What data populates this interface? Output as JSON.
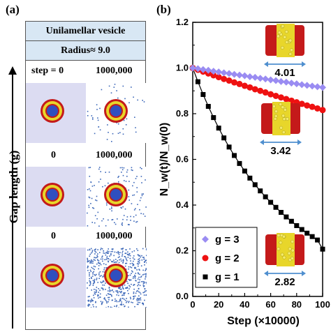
{
  "panel_a": {
    "label": "(a)",
    "header1": "Unilamellar vesicle",
    "header2": "Radius≈ 9.0",
    "rows": [
      {
        "left": "step = 0",
        "right": "1000,000"
      },
      {
        "left": "0",
        "right": "1000,000"
      },
      {
        "left": "0",
        "right": "1000,000"
      }
    ],
    "vertical_label": "Gap length (g)"
  },
  "panel_b": {
    "label": "(b)",
    "insets": [
      {
        "value": "4.01"
      },
      {
        "value": "3.42"
      },
      {
        "value": "2.82"
      }
    ]
  },
  "chart_data": {
    "type": "scatter",
    "xlabel": "Step (×10000)",
    "ylabel": "N_w(t)/N_w(0)",
    "xlim": [
      0,
      100
    ],
    "ylim": [
      0.0,
      1.2
    ],
    "xticks": [
      0,
      20,
      40,
      60,
      80,
      100
    ],
    "yticks": [
      0.0,
      0.2,
      0.4,
      0.6,
      0.8,
      1.0,
      1.2
    ],
    "legend_position": "bottom-left",
    "series": [
      {
        "name": "g = 3",
        "marker": "diamond",
        "color": "#9a8cf2",
        "x": [
          0,
          4,
          8,
          12,
          16,
          20,
          24,
          28,
          32,
          36,
          40,
          44,
          48,
          52,
          56,
          60,
          64,
          68,
          72,
          76,
          80,
          84,
          88,
          92,
          96,
          100
        ],
        "y": [
          1.0,
          0.997,
          0.993,
          0.99,
          0.986,
          0.983,
          0.979,
          0.976,
          0.972,
          0.969,
          0.966,
          0.962,
          0.959,
          0.955,
          0.952,
          0.948,
          0.945,
          0.941,
          0.938,
          0.934,
          0.931,
          0.927,
          0.924,
          0.921,
          0.918,
          0.915
        ]
      },
      {
        "name": "g = 2",
        "marker": "circle",
        "color": "#ee1111",
        "x": [
          0,
          4,
          8,
          12,
          16,
          20,
          24,
          28,
          32,
          36,
          40,
          44,
          48,
          52,
          56,
          60,
          64,
          68,
          72,
          76,
          80,
          84,
          88,
          92,
          96,
          100
        ],
        "y": [
          1.0,
          0.992,
          0.984,
          0.976,
          0.968,
          0.96,
          0.952,
          0.945,
          0.937,
          0.93,
          0.922,
          0.915,
          0.907,
          0.9,
          0.893,
          0.885,
          0.878,
          0.871,
          0.864,
          0.857,
          0.85,
          0.843,
          0.836,
          0.83,
          0.823,
          0.816
        ]
      },
      {
        "name": "g = 1",
        "marker": "square",
        "color": "#000000",
        "x": [
          0,
          4,
          8,
          12,
          16,
          20,
          24,
          28,
          32,
          36,
          40,
          44,
          48,
          52,
          56,
          60,
          64,
          68,
          72,
          76,
          80,
          84,
          88,
          92,
          96,
          100
        ],
        "y": [
          1.0,
          0.94,
          0.884,
          0.832,
          0.783,
          0.737,
          0.694,
          0.654,
          0.617,
          0.582,
          0.549,
          0.518,
          0.489,
          0.462,
          0.436,
          0.412,
          0.39,
          0.368,
          0.348,
          0.329,
          0.31,
          0.293,
          0.277,
          0.262,
          0.247,
          0.207
        ]
      }
    ]
  }
}
